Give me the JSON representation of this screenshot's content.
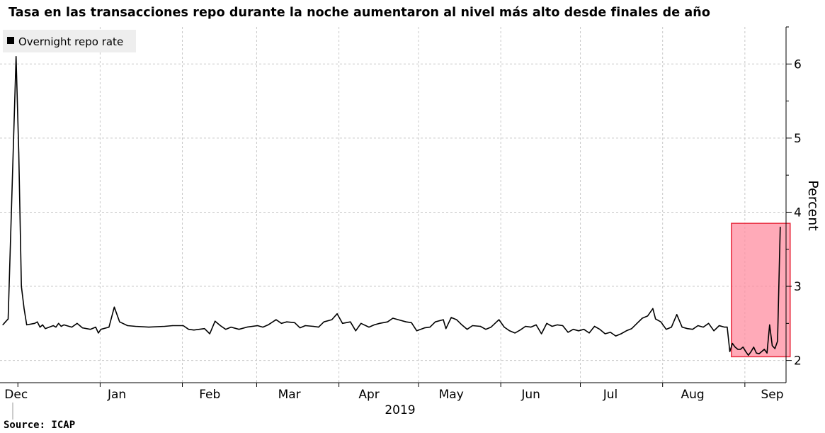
{
  "chart_data": {
    "type": "line",
    "title": "Tasa en las transacciones repo durante la noche aumentaron al nivel más alto desde finales de año",
    "ylabel": "Percent",
    "year_label": "2019",
    "source": "Source: ICAP",
    "ylim": [
      1.7,
      6.5
    ],
    "y_ticks": [
      2,
      3,
      4,
      5,
      6
    ],
    "grid": true,
    "legend_position": "top-left",
    "x_tick_labels": [
      "Dec",
      "Jan",
      "Feb",
      "Mar",
      "Apr",
      "May",
      "Jun",
      "Jul",
      "Aug",
      "Sep"
    ],
    "colors": {
      "line": "#000000",
      "highlight_fill": "#ff8ea0",
      "highlight_stroke": "#e8283c",
      "grid": "#c8c8c8"
    },
    "highlight": {
      "x_start": "2019-08-28",
      "x_end": "2019-09-17",
      "y_start": 2.05,
      "y_end": 3.85
    },
    "series": [
      {
        "name": "Overnight repo rate",
        "points": [
          [
            "2018-11-28",
            2.48
          ],
          [
            "2018-11-29",
            2.52
          ],
          [
            "2018-11-30",
            2.56
          ],
          [
            "2018-12-03",
            6.1
          ],
          [
            "2018-12-04",
            4.8
          ],
          [
            "2018-12-05",
            3.0
          ],
          [
            "2018-12-06",
            2.7
          ],
          [
            "2018-12-07",
            2.48
          ],
          [
            "2018-12-10",
            2.5
          ],
          [
            "2018-12-11",
            2.52
          ],
          [
            "2018-12-12",
            2.45
          ],
          [
            "2018-12-13",
            2.48
          ],
          [
            "2018-12-14",
            2.43
          ],
          [
            "2018-12-17",
            2.47
          ],
          [
            "2018-12-18",
            2.45
          ],
          [
            "2018-12-19",
            2.5
          ],
          [
            "2018-12-20",
            2.46
          ],
          [
            "2018-12-21",
            2.48
          ],
          [
            "2018-12-24",
            2.45
          ],
          [
            "2018-12-26",
            2.5
          ],
          [
            "2018-12-27",
            2.47
          ],
          [
            "2018-12-28",
            2.44
          ],
          [
            "2018-12-31",
            2.42
          ],
          [
            "2019-01-02",
            2.45
          ],
          [
            "2019-01-03",
            2.37
          ],
          [
            "2019-01-04",
            2.42
          ],
          [
            "2019-01-07",
            2.45
          ],
          [
            "2019-01-09",
            2.72
          ],
          [
            "2019-01-11",
            2.52
          ],
          [
            "2019-01-14",
            2.47
          ],
          [
            "2019-01-17",
            2.46
          ],
          [
            "2019-01-22",
            2.45
          ],
          [
            "2019-01-28",
            2.46
          ],
          [
            "2019-01-31",
            2.47
          ],
          [
            "2019-02-04",
            2.47
          ],
          [
            "2019-02-06",
            2.42
          ],
          [
            "2019-02-08",
            2.41
          ],
          [
            "2019-02-12",
            2.43
          ],
          [
            "2019-02-14",
            2.36
          ],
          [
            "2019-02-16",
            2.53
          ],
          [
            "2019-02-18",
            2.47
          ],
          [
            "2019-02-20",
            2.42
          ],
          [
            "2019-02-22",
            2.45
          ],
          [
            "2019-02-25",
            2.42
          ],
          [
            "2019-02-28",
            2.45
          ],
          [
            "2019-03-04",
            2.47
          ],
          [
            "2019-03-06",
            2.45
          ],
          [
            "2019-03-08",
            2.48
          ],
          [
            "2019-03-11",
            2.55
          ],
          [
            "2019-03-13",
            2.5
          ],
          [
            "2019-03-15",
            2.52
          ],
          [
            "2019-03-18",
            2.51
          ],
          [
            "2019-03-20",
            2.44
          ],
          [
            "2019-03-22",
            2.47
          ],
          [
            "2019-03-25",
            2.46
          ],
          [
            "2019-03-27",
            2.45
          ],
          [
            "2019-03-29",
            2.52
          ],
          [
            "2019-04-01",
            2.55
          ],
          [
            "2019-04-03",
            2.63
          ],
          [
            "2019-04-05",
            2.5
          ],
          [
            "2019-04-08",
            2.52
          ],
          [
            "2019-04-10",
            2.4
          ],
          [
            "2019-04-12",
            2.5
          ],
          [
            "2019-04-15",
            2.45
          ],
          [
            "2019-04-17",
            2.48
          ],
          [
            "2019-04-19",
            2.5
          ],
          [
            "2019-04-22",
            2.52
          ],
          [
            "2019-04-24",
            2.57
          ],
          [
            "2019-04-26",
            2.55
          ],
          [
            "2019-04-29",
            2.52
          ],
          [
            "2019-05-01",
            2.51
          ],
          [
            "2019-05-03",
            2.4
          ],
          [
            "2019-05-06",
            2.44
          ],
          [
            "2019-05-08",
            2.45
          ],
          [
            "2019-05-10",
            2.52
          ],
          [
            "2019-05-13",
            2.55
          ],
          [
            "2019-05-14",
            2.43
          ],
          [
            "2019-05-16",
            2.58
          ],
          [
            "2019-05-18",
            2.55
          ],
          [
            "2019-05-20",
            2.48
          ],
          [
            "2019-05-22",
            2.42
          ],
          [
            "2019-05-24",
            2.47
          ],
          [
            "2019-05-27",
            2.46
          ],
          [
            "2019-05-29",
            2.42
          ],
          [
            "2019-05-31",
            2.45
          ],
          [
            "2019-06-03",
            2.55
          ],
          [
            "2019-06-05",
            2.45
          ],
          [
            "2019-06-07",
            2.4
          ],
          [
            "2019-06-09",
            2.37
          ],
          [
            "2019-06-11",
            2.41
          ],
          [
            "2019-06-13",
            2.46
          ],
          [
            "2019-06-15",
            2.45
          ],
          [
            "2019-06-17",
            2.48
          ],
          [
            "2019-06-19",
            2.36
          ],
          [
            "2019-06-21",
            2.5
          ],
          [
            "2019-06-23",
            2.46
          ],
          [
            "2019-06-25",
            2.48
          ],
          [
            "2019-06-27",
            2.47
          ],
          [
            "2019-06-29",
            2.38
          ],
          [
            "2019-07-01",
            2.42
          ],
          [
            "2019-07-03",
            2.4
          ],
          [
            "2019-07-05",
            2.42
          ],
          [
            "2019-07-07",
            2.37
          ],
          [
            "2019-07-09",
            2.46
          ],
          [
            "2019-07-11",
            2.42
          ],
          [
            "2019-07-13",
            2.36
          ],
          [
            "2019-07-15",
            2.38
          ],
          [
            "2019-07-17",
            2.33
          ],
          [
            "2019-07-19",
            2.36
          ],
          [
            "2019-07-21",
            2.4
          ],
          [
            "2019-07-23",
            2.43
          ],
          [
            "2019-07-25",
            2.5
          ],
          [
            "2019-07-27",
            2.57
          ],
          [
            "2019-07-29",
            2.6
          ],
          [
            "2019-07-31",
            2.7
          ],
          [
            "2019-08-01",
            2.56
          ],
          [
            "2019-08-03",
            2.52
          ],
          [
            "2019-08-05",
            2.42
          ],
          [
            "2019-08-07",
            2.45
          ],
          [
            "2019-08-09",
            2.62
          ],
          [
            "2019-08-11",
            2.45
          ],
          [
            "2019-08-13",
            2.43
          ],
          [
            "2019-08-15",
            2.42
          ],
          [
            "2019-08-17",
            2.47
          ],
          [
            "2019-08-19",
            2.45
          ],
          [
            "2019-08-21",
            2.5
          ],
          [
            "2019-08-23",
            2.4
          ],
          [
            "2019-08-25",
            2.47
          ],
          [
            "2019-08-27",
            2.45
          ],
          [
            "2019-08-28",
            2.45
          ],
          [
            "2019-08-29",
            2.12
          ],
          [
            "2019-08-30",
            2.23
          ],
          [
            "2019-08-31",
            2.18
          ],
          [
            "2019-09-01",
            2.15
          ],
          [
            "2019-09-02",
            2.15
          ],
          [
            "2019-09-03",
            2.18
          ],
          [
            "2019-09-04",
            2.12
          ],
          [
            "2019-09-05",
            2.07
          ],
          [
            "2019-09-06",
            2.12
          ],
          [
            "2019-09-07",
            2.18
          ],
          [
            "2019-09-08",
            2.1
          ],
          [
            "2019-09-09",
            2.09
          ],
          [
            "2019-09-10",
            2.12
          ],
          [
            "2019-09-11",
            2.15
          ],
          [
            "2019-09-12",
            2.1
          ],
          [
            "2019-09-13",
            2.48
          ],
          [
            "2019-09-14",
            2.2
          ],
          [
            "2019-09-15",
            2.16
          ],
          [
            "2019-09-16",
            2.26
          ],
          [
            "2019-09-17",
            3.8
          ]
        ]
      }
    ]
  }
}
